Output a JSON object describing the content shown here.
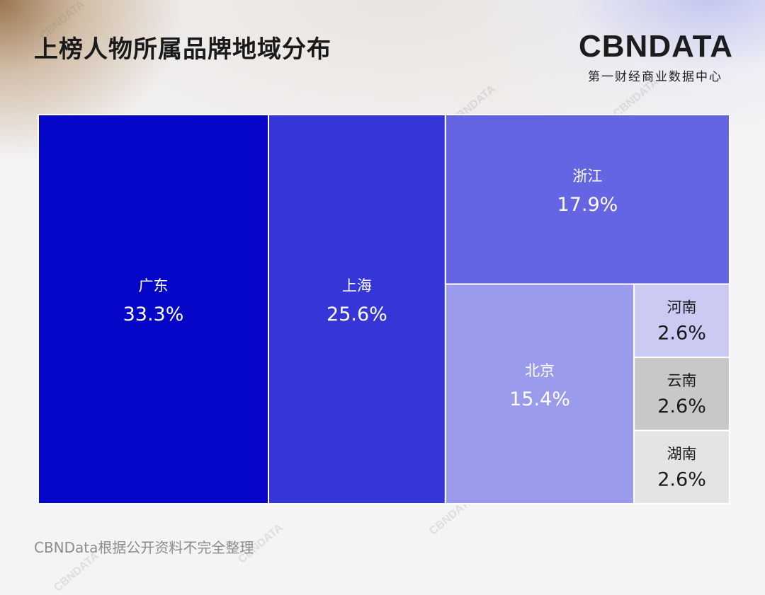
{
  "header": {
    "title": "上榜人物所属品牌地域分布",
    "logo_text": "CBNDATA",
    "logo_subtitle": "第一财经商业数据中心",
    "watermark": "CBNDATA"
  },
  "footer": {
    "source": "CBNData根据公开资料不完全整理"
  },
  "colors": {
    "广东": "#0606c9",
    "上海": "#3535d8",
    "浙江": "#6565e3",
    "北京": "#9b9bed",
    "河南": "#cacaf3",
    "云南": "#c8c8c8",
    "湖南": "#e4e4e4"
  },
  "chart_data": {
    "type": "treemap",
    "title": "上榜人物所属品牌地域分布",
    "unit": "%",
    "items": [
      {
        "name": "广东",
        "value": 33.3,
        "label": "33.3%"
      },
      {
        "name": "上海",
        "value": 25.6,
        "label": "25.6%"
      },
      {
        "name": "浙江",
        "value": 17.9,
        "label": "17.9%"
      },
      {
        "name": "北京",
        "value": 15.4,
        "label": "15.4%"
      },
      {
        "name": "河南",
        "value": 2.6,
        "label": "2.6%"
      },
      {
        "name": "云南",
        "value": 2.6,
        "label": "2.6%"
      },
      {
        "name": "湖南",
        "value": 2.6,
        "label": "2.6%"
      }
    ]
  }
}
